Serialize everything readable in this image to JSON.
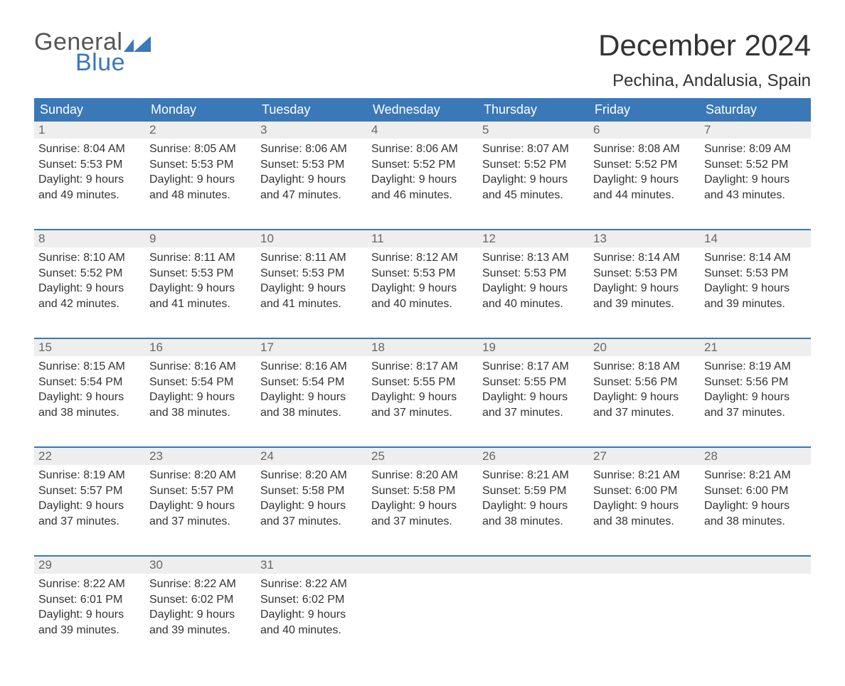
{
  "brand": {
    "word1": "General",
    "word2": "Blue",
    "logo_color": "#3a78b8",
    "text_color": "#555555"
  },
  "title": "December 2024",
  "location": "Pechina, Andalusia, Spain",
  "colors": {
    "header_bg": "#3a78b8",
    "header_text": "#ffffff",
    "daynum_bg": "#eeeeee",
    "daynum_text": "#666666",
    "body_text": "#333333",
    "rule": "#3a78b8",
    "page_bg": "#ffffff"
  },
  "typography": {
    "title_fontsize": 42,
    "location_fontsize": 24,
    "header_fontsize": 18,
    "daynum_fontsize": 17,
    "body_fontsize": 16,
    "font_family": "Arial"
  },
  "day_headers": [
    "Sunday",
    "Monday",
    "Tuesday",
    "Wednesday",
    "Thursday",
    "Friday",
    "Saturday"
  ],
  "labels": {
    "sunrise": "Sunrise:",
    "sunset": "Sunset:",
    "daylight": "Daylight:"
  },
  "weeks": [
    [
      {
        "n": "1",
        "sunrise": "8:04 AM",
        "sunset": "5:53 PM",
        "daylight": "9 hours and 49 minutes."
      },
      {
        "n": "2",
        "sunrise": "8:05 AM",
        "sunset": "5:53 PM",
        "daylight": "9 hours and 48 minutes."
      },
      {
        "n": "3",
        "sunrise": "8:06 AM",
        "sunset": "5:53 PM",
        "daylight": "9 hours and 47 minutes."
      },
      {
        "n": "4",
        "sunrise": "8:06 AM",
        "sunset": "5:52 PM",
        "daylight": "9 hours and 46 minutes."
      },
      {
        "n": "5",
        "sunrise": "8:07 AM",
        "sunset": "5:52 PM",
        "daylight": "9 hours and 45 minutes."
      },
      {
        "n": "6",
        "sunrise": "8:08 AM",
        "sunset": "5:52 PM",
        "daylight": "9 hours and 44 minutes."
      },
      {
        "n": "7",
        "sunrise": "8:09 AM",
        "sunset": "5:52 PM",
        "daylight": "9 hours and 43 minutes."
      }
    ],
    [
      {
        "n": "8",
        "sunrise": "8:10 AM",
        "sunset": "5:52 PM",
        "daylight": "9 hours and 42 minutes."
      },
      {
        "n": "9",
        "sunrise": "8:11 AM",
        "sunset": "5:53 PM",
        "daylight": "9 hours and 41 minutes."
      },
      {
        "n": "10",
        "sunrise": "8:11 AM",
        "sunset": "5:53 PM",
        "daylight": "9 hours and 41 minutes."
      },
      {
        "n": "11",
        "sunrise": "8:12 AM",
        "sunset": "5:53 PM",
        "daylight": "9 hours and 40 minutes."
      },
      {
        "n": "12",
        "sunrise": "8:13 AM",
        "sunset": "5:53 PM",
        "daylight": "9 hours and 40 minutes."
      },
      {
        "n": "13",
        "sunrise": "8:14 AM",
        "sunset": "5:53 PM",
        "daylight": "9 hours and 39 minutes."
      },
      {
        "n": "14",
        "sunrise": "8:14 AM",
        "sunset": "5:53 PM",
        "daylight": "9 hours and 39 minutes."
      }
    ],
    [
      {
        "n": "15",
        "sunrise": "8:15 AM",
        "sunset": "5:54 PM",
        "daylight": "9 hours and 38 minutes."
      },
      {
        "n": "16",
        "sunrise": "8:16 AM",
        "sunset": "5:54 PM",
        "daylight": "9 hours and 38 minutes."
      },
      {
        "n": "17",
        "sunrise": "8:16 AM",
        "sunset": "5:54 PM",
        "daylight": "9 hours and 38 minutes."
      },
      {
        "n": "18",
        "sunrise": "8:17 AM",
        "sunset": "5:55 PM",
        "daylight": "9 hours and 37 minutes."
      },
      {
        "n": "19",
        "sunrise": "8:17 AM",
        "sunset": "5:55 PM",
        "daylight": "9 hours and 37 minutes."
      },
      {
        "n": "20",
        "sunrise": "8:18 AM",
        "sunset": "5:56 PM",
        "daylight": "9 hours and 37 minutes."
      },
      {
        "n": "21",
        "sunrise": "8:19 AM",
        "sunset": "5:56 PM",
        "daylight": "9 hours and 37 minutes."
      }
    ],
    [
      {
        "n": "22",
        "sunrise": "8:19 AM",
        "sunset": "5:57 PM",
        "daylight": "9 hours and 37 minutes."
      },
      {
        "n": "23",
        "sunrise": "8:20 AM",
        "sunset": "5:57 PM",
        "daylight": "9 hours and 37 minutes."
      },
      {
        "n": "24",
        "sunrise": "8:20 AM",
        "sunset": "5:58 PM",
        "daylight": "9 hours and 37 minutes."
      },
      {
        "n": "25",
        "sunrise": "8:20 AM",
        "sunset": "5:58 PM",
        "daylight": "9 hours and 37 minutes."
      },
      {
        "n": "26",
        "sunrise": "8:21 AM",
        "sunset": "5:59 PM",
        "daylight": "9 hours and 38 minutes."
      },
      {
        "n": "27",
        "sunrise": "8:21 AM",
        "sunset": "6:00 PM",
        "daylight": "9 hours and 38 minutes."
      },
      {
        "n": "28",
        "sunrise": "8:21 AM",
        "sunset": "6:00 PM",
        "daylight": "9 hours and 38 minutes."
      }
    ],
    [
      {
        "n": "29",
        "sunrise": "8:22 AM",
        "sunset": "6:01 PM",
        "daylight": "9 hours and 39 minutes."
      },
      {
        "n": "30",
        "sunrise": "8:22 AM",
        "sunset": "6:02 PM",
        "daylight": "9 hours and 39 minutes."
      },
      {
        "n": "31",
        "sunrise": "8:22 AM",
        "sunset": "6:02 PM",
        "daylight": "9 hours and 40 minutes."
      },
      null,
      null,
      null,
      null
    ]
  ]
}
